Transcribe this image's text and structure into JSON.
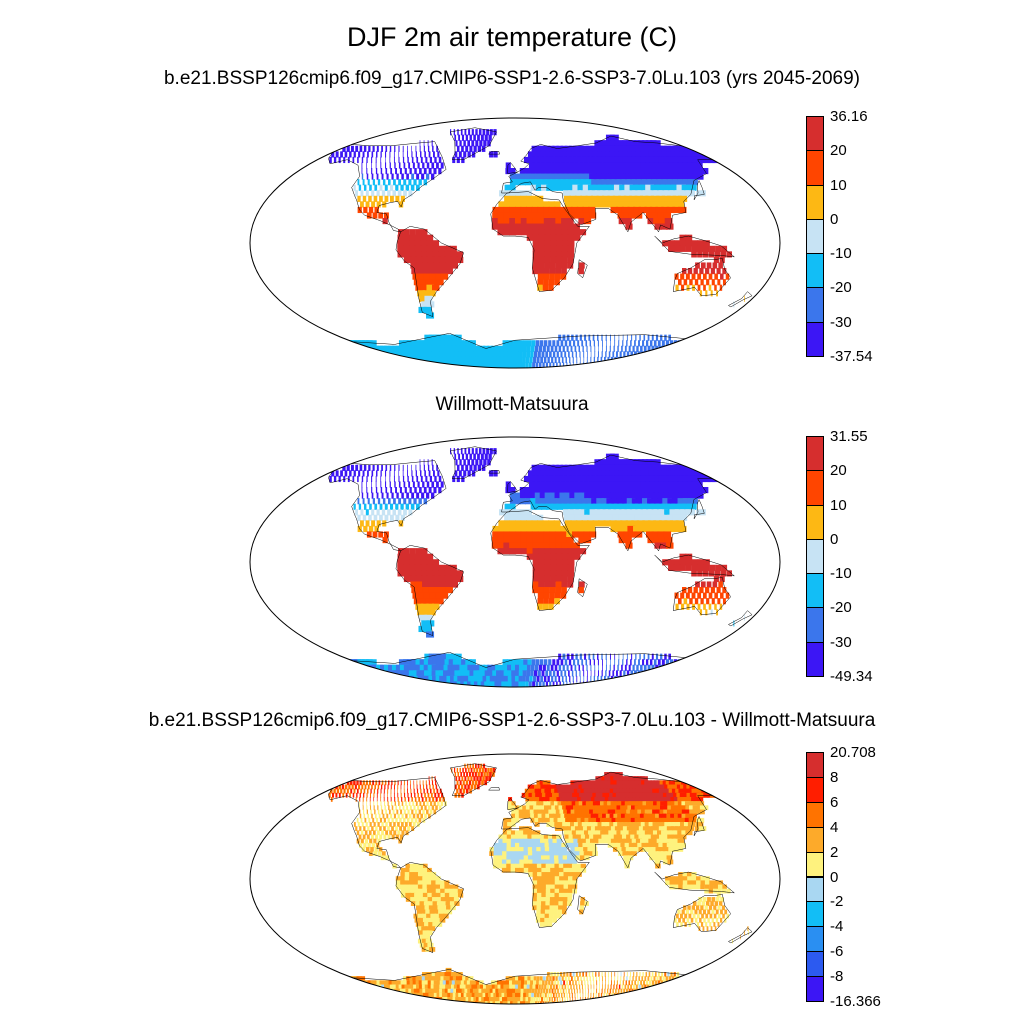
{
  "figure": {
    "title": "DJF 2m air temperature (C)"
  },
  "panels": [
    {
      "id": "model",
      "title": "b.e21.BSSP126cmip6.f09_g17.CMIP6-SSP1-2.6-SSP3-7.0Lu.103 (yrs 2045-2069)",
      "colorbar": {
        "colors": [
          "#d62e2e",
          "#ff4500",
          "#fdb814",
          "#c7e3f4",
          "#12bef6",
          "#3b76ec",
          "#3c16f5"
        ],
        "labels": [
          "36.16",
          "20",
          "10",
          "0",
          "-10",
          "-20",
          "-30",
          "-37.54"
        ]
      }
    },
    {
      "id": "obs",
      "title": "Willmott-Matsuura",
      "colorbar": {
        "colors": [
          "#d62e2e",
          "#ff4500",
          "#fdb814",
          "#c7e3f4",
          "#12bef6",
          "#3b76ec",
          "#3c16f5"
        ],
        "labels": [
          "31.55",
          "20",
          "10",
          "0",
          "-10",
          "-20",
          "-30",
          "-49.34"
        ]
      }
    },
    {
      "id": "diff",
      "title": "b.e21.BSSP126cmip6.f09_g17.CMIP6-SSP1-2.6-SSP3-7.0Lu.103 - Willmott-Matsuura",
      "colorbar": {
        "colors": [
          "#d62e2e",
          "#ff1e00",
          "#ff7300",
          "#fdaa2a",
          "#fef27e",
          "#a9d7f2",
          "#12bef6",
          "#2a8ff2",
          "#2c5af0",
          "#3c16f5"
        ],
        "labels": [
          "20.708",
          "8",
          "6",
          "4",
          "2",
          "0",
          "-2",
          "-4",
          "-6",
          "-8",
          "-16.366"
        ]
      }
    }
  ]
}
